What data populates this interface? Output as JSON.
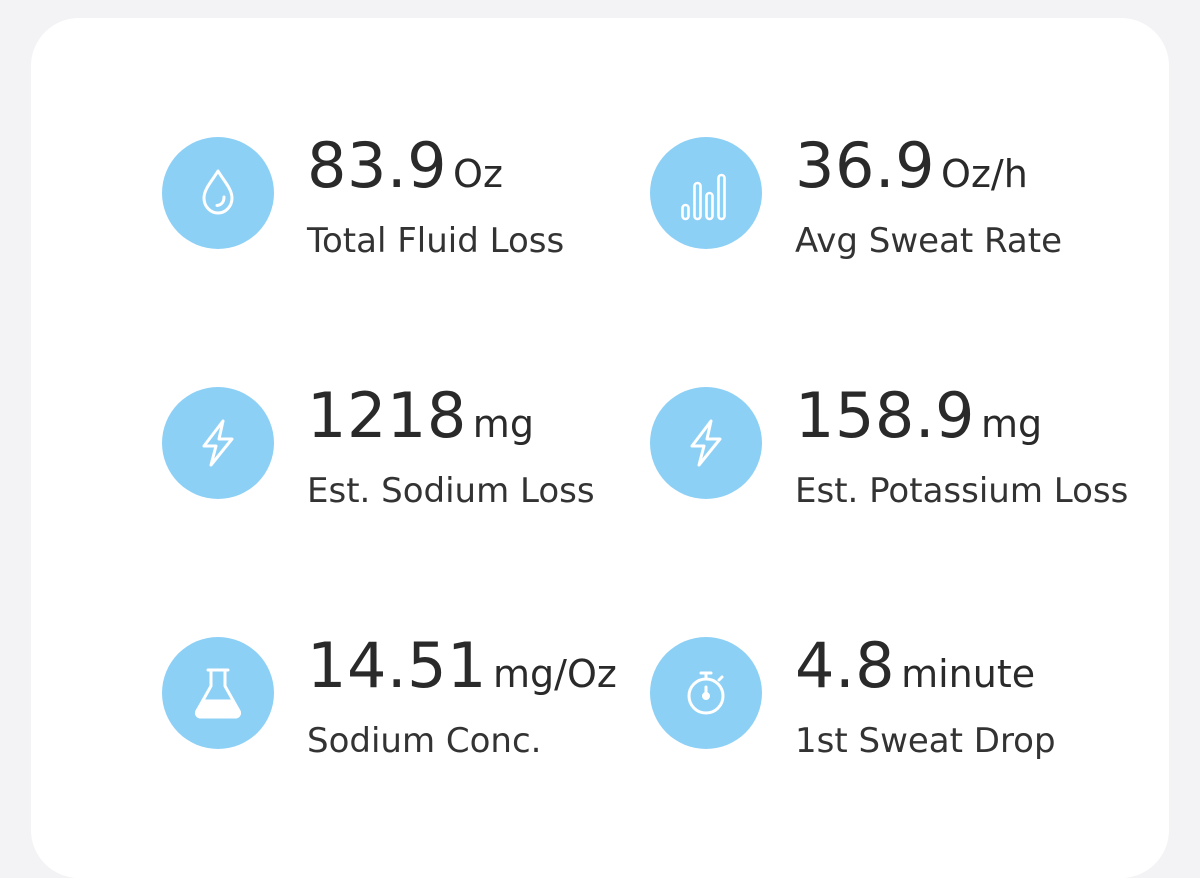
{
  "stats": [
    {
      "value": "83.9",
      "unit": "Oz",
      "label": "Total Fluid Loss",
      "icon": "water-drop-icon"
    },
    {
      "value": "36.9",
      "unit": "Oz/h",
      "label": "Avg Sweat Rate",
      "icon": "bar-chart-icon"
    },
    {
      "value": "1218",
      "unit": "mg",
      "label": "Est. Sodium Loss",
      "icon": "lightning-bolt-icon"
    },
    {
      "value": "158.9",
      "unit": "mg",
      "label": "Est. Potassium Loss",
      "icon": "lightning-bolt-icon"
    },
    {
      "value": "14.51",
      "unit": "mg/Oz",
      "label": "Sodium Conc.",
      "icon": "flask-icon"
    },
    {
      "value": "4.8",
      "unit": "minute",
      "label": "1st Sweat Drop",
      "icon": "stopwatch-icon"
    }
  ],
  "colors": {
    "icon_background": "#8dd0f6",
    "icon_stroke": "#ffffff",
    "text": "#2a2a2a",
    "card": "#ffffff",
    "page": "#f3f3f5"
  }
}
